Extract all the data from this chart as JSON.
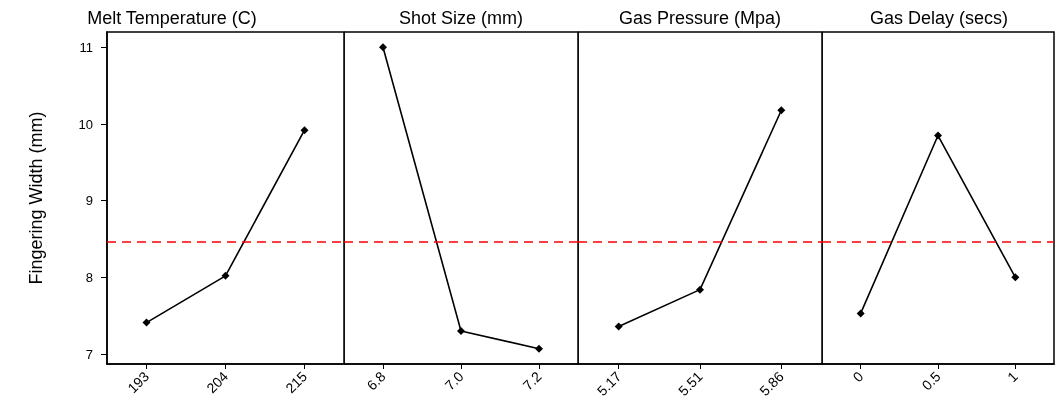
{
  "chart_data": [
    {
      "type": "line",
      "title": "Melt Temperature (C)",
      "ylabel": "Fingering Width (mm)",
      "categories": [
        "193",
        "204",
        "215"
      ],
      "values": [
        7.41,
        8.02,
        9.92
      ],
      "color": "#000000",
      "marker": "diamond",
      "ylim": [
        6.87,
        11.2
      ],
      "yticks": [
        7,
        8,
        9,
        10,
        11
      ],
      "ref_lines": [
        {
          "axis": "y",
          "value": 8.46,
          "color": "#ff0000",
          "line_style": "dashed"
        }
      ]
    },
    {
      "type": "line",
      "title": "Shot Size (mm)",
      "categories": [
        "6.8",
        "7.0",
        "7.2"
      ],
      "values": [
        11.0,
        7.3,
        7.07
      ],
      "color": "#000000",
      "marker": "diamond",
      "ylim": [
        6.87,
        11.2
      ],
      "tick_labels": "x",
      "ref_lines": [
        {
          "axis": "y",
          "value": 8.46,
          "color": "#ff0000",
          "line_style": "dashed"
        }
      ]
    },
    {
      "type": "line",
      "title": "Gas Pressure (Mpa)",
      "categories": [
        "5.17",
        "5.51",
        "5.86"
      ],
      "values": [
        7.36,
        7.84,
        10.18
      ],
      "color": "#000000",
      "marker": "diamond",
      "ylim": [
        6.87,
        11.2
      ],
      "tick_labels": "x",
      "ref_lines": [
        {
          "axis": "y",
          "value": 8.46,
          "color": "#ff0000",
          "line_style": "dashed"
        }
      ]
    },
    {
      "type": "line",
      "title": "Gas Delay (secs)",
      "categories": [
        "0",
        "0.5",
        "1"
      ],
      "values": [
        7.53,
        9.85,
        8.0
      ],
      "color": "#000000",
      "marker": "diamond",
      "ylim": [
        6.87,
        11.2
      ],
      "tick_labels": "x",
      "ref_lines": [
        {
          "axis": "y",
          "value": 8.46,
          "color": "#ff0000",
          "line_style": "dashed"
        }
      ]
    }
  ]
}
